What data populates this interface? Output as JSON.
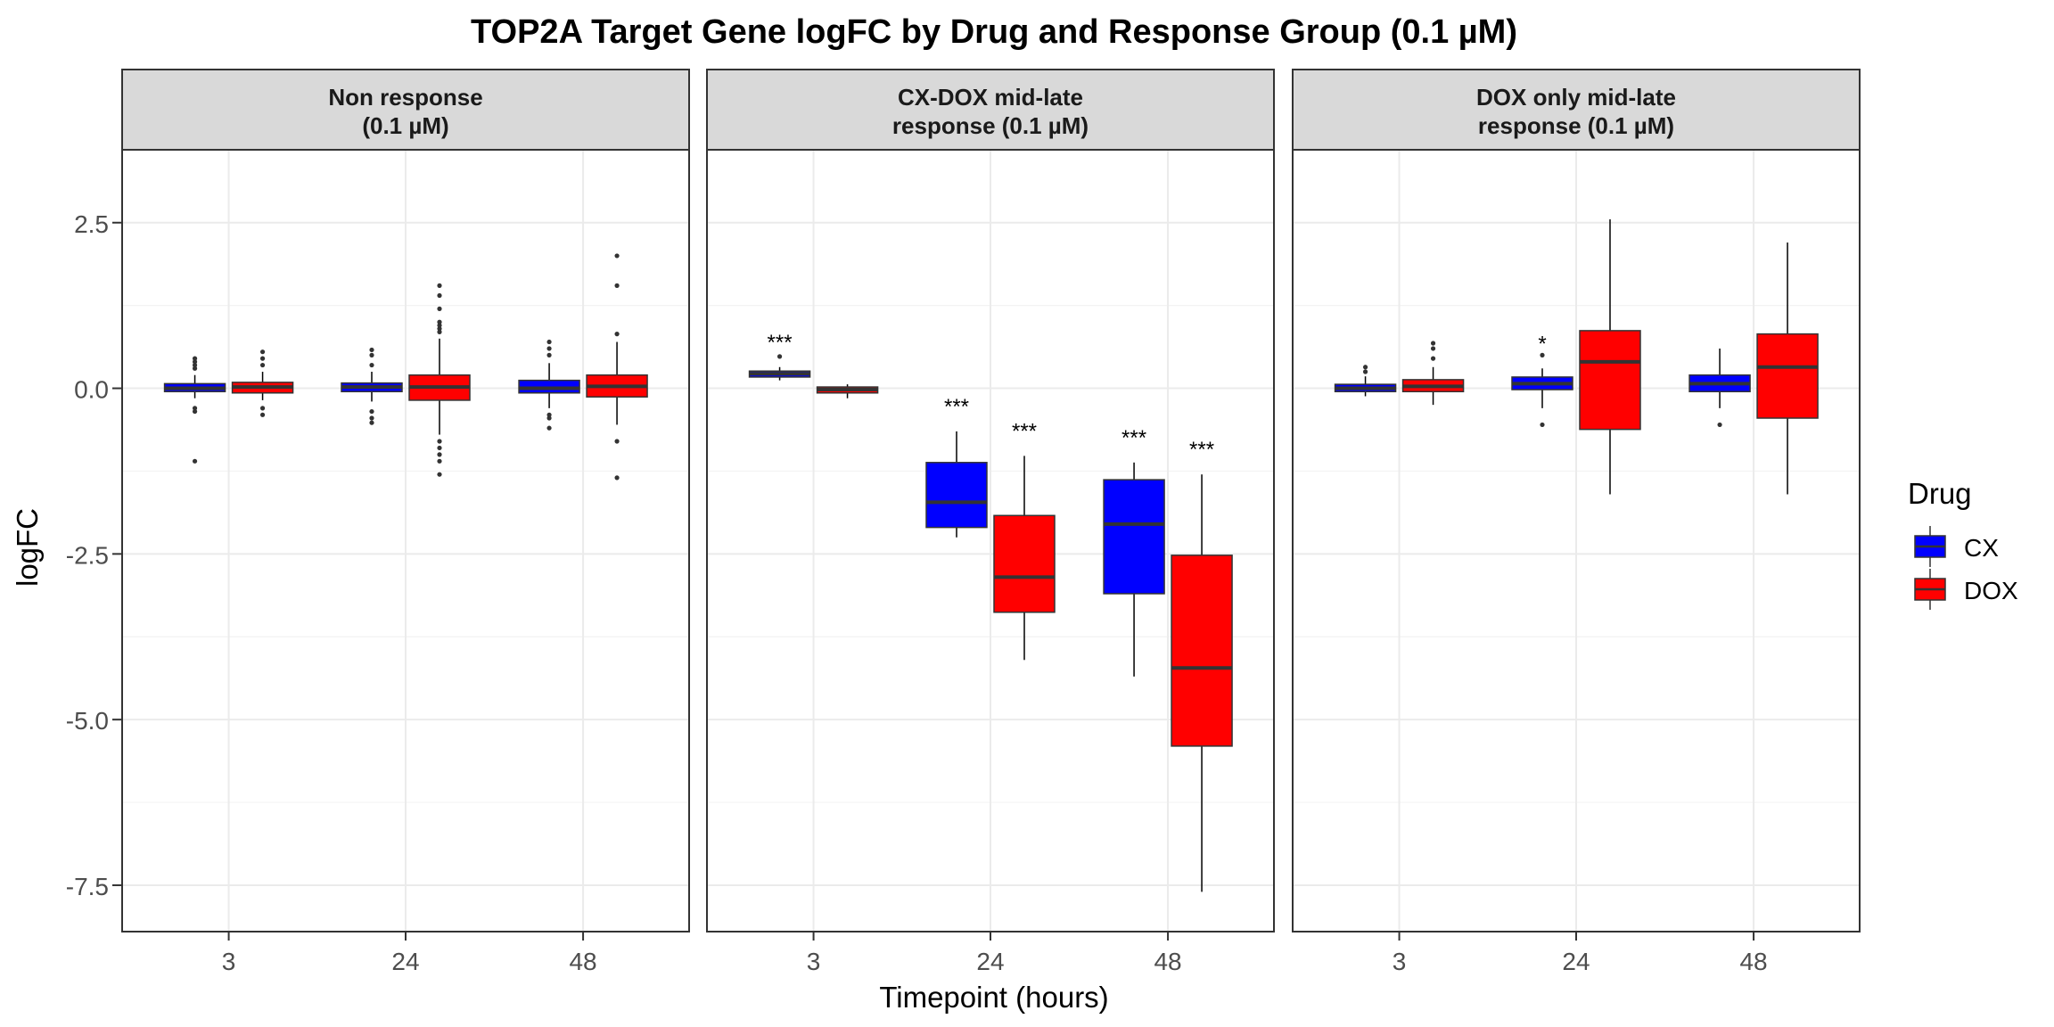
{
  "chart_data": {
    "type": "boxplot",
    "title": "TOP2A Target Gene logFC by Drug and Response Group (0.1 µM)",
    "xlabel": "Timepoint (hours)",
    "ylabel": "logFC",
    "ylim": [
      -8.2,
      3.6
    ],
    "y_ticks": [
      2.5,
      0.0,
      -2.5,
      -5.0,
      -7.5
    ],
    "y_tick_labels": [
      "2.5",
      "0.0",
      "-2.5",
      "-5.0",
      "-7.5"
    ],
    "categories": [
      "3",
      "24",
      "48"
    ],
    "grid": true,
    "legend": {
      "title": "Drug",
      "placement": "right",
      "entries": [
        {
          "name": "CX",
          "color": "#0000FF"
        },
        {
          "name": "DOX",
          "color": "#FF0000"
        }
      ]
    },
    "facets": [
      {
        "label": "Non response\n(0.1 µM)",
        "boxes": [
          {
            "timepoint": "3",
            "drug": "CX",
            "lower_whisker": -0.15,
            "q1": -0.05,
            "median": 0.0,
            "q3": 0.07,
            "upper_whisker": 0.2,
            "outliers": [
              0.3,
              0.35,
              0.4,
              0.45,
              -0.3,
              -0.35,
              -1.1
            ],
            "significance": ""
          },
          {
            "timepoint": "3",
            "drug": "DOX",
            "lower_whisker": -0.18,
            "q1": -0.07,
            "median": 0.02,
            "q3": 0.09,
            "upper_whisker": 0.25,
            "outliers": [
              0.35,
              0.45,
              0.55,
              -0.3,
              -0.4
            ],
            "significance": ""
          },
          {
            "timepoint": "24",
            "drug": "CX",
            "lower_whisker": -0.2,
            "q1": -0.05,
            "median": 0.02,
            "q3": 0.08,
            "upper_whisker": 0.25,
            "outliers": [
              0.35,
              0.5,
              0.58,
              -0.35,
              -0.45,
              -0.52
            ],
            "significance": ""
          },
          {
            "timepoint": "24",
            "drug": "DOX",
            "lower_whisker": -0.7,
            "q1": -0.18,
            "median": 0.02,
            "q3": 0.2,
            "upper_whisker": 0.75,
            "outliers": [
              0.85,
              0.9,
              0.95,
              1.0,
              1.2,
              1.4,
              1.55,
              -0.8,
              -0.9,
              -1.0,
              -1.1,
              -1.3
            ],
            "significance": ""
          },
          {
            "timepoint": "48",
            "drug": "CX",
            "lower_whisker": -0.3,
            "q1": -0.07,
            "median": 0.0,
            "q3": 0.12,
            "upper_whisker": 0.38,
            "outliers": [
              0.5,
              0.6,
              0.7,
              -0.4,
              -0.45,
              -0.6
            ],
            "significance": ""
          },
          {
            "timepoint": "48",
            "drug": "DOX",
            "lower_whisker": -0.55,
            "q1": -0.13,
            "median": 0.03,
            "q3": 0.2,
            "upper_whisker": 0.7,
            "outliers": [
              0.82,
              1.55,
              2.0,
              -0.8,
              -1.35
            ],
            "significance": ""
          }
        ]
      },
      {
        "label": "CX-DOX mid-late\nresponse (0.1 µM)",
        "boxes": [
          {
            "timepoint": "3",
            "drug": "CX",
            "lower_whisker": 0.12,
            "q1": 0.17,
            "median": 0.22,
            "q3": 0.26,
            "upper_whisker": 0.32,
            "outliers": [
              0.48
            ],
            "significance": "***"
          },
          {
            "timepoint": "3",
            "drug": "DOX",
            "lower_whisker": -0.15,
            "q1": -0.07,
            "median": -0.02,
            "q3": 0.02,
            "upper_whisker": 0.06,
            "outliers": [],
            "significance": ""
          },
          {
            "timepoint": "24",
            "drug": "CX",
            "lower_whisker": -2.25,
            "q1": -2.1,
            "median": -1.72,
            "q3": -1.12,
            "upper_whisker": -0.65,
            "outliers": [],
            "significance": "***"
          },
          {
            "timepoint": "24",
            "drug": "DOX",
            "lower_whisker": -4.1,
            "q1": -3.38,
            "median": -2.85,
            "q3": -1.92,
            "upper_whisker": -1.02,
            "outliers": [],
            "significance": "***"
          },
          {
            "timepoint": "48",
            "drug": "CX",
            "lower_whisker": -4.35,
            "q1": -3.1,
            "median": -2.05,
            "q3": -1.38,
            "upper_whisker": -1.12,
            "outliers": [],
            "significance": "***"
          },
          {
            "timepoint": "48",
            "drug": "DOX",
            "lower_whisker": -7.6,
            "q1": -5.4,
            "median": -4.22,
            "q3": -2.52,
            "upper_whisker": -1.3,
            "outliers": [],
            "significance": "***"
          }
        ]
      },
      {
        "label": "DOX only mid-late\nresponse (0.1 µM)",
        "boxes": [
          {
            "timepoint": "3",
            "drug": "CX",
            "lower_whisker": -0.12,
            "q1": -0.05,
            "median": 0.0,
            "q3": 0.06,
            "upper_whisker": 0.18,
            "outliers": [
              0.25,
              0.32
            ],
            "significance": ""
          },
          {
            "timepoint": "3",
            "drug": "DOX",
            "lower_whisker": -0.25,
            "q1": -0.05,
            "median": 0.03,
            "q3": 0.13,
            "upper_whisker": 0.32,
            "outliers": [
              0.45,
              0.6,
              0.68
            ],
            "significance": ""
          },
          {
            "timepoint": "24",
            "drug": "CX",
            "lower_whisker": -0.3,
            "q1": -0.02,
            "median": 0.07,
            "q3": 0.17,
            "upper_whisker": 0.3,
            "outliers": [
              0.5,
              -0.55
            ],
            "significance": "*"
          },
          {
            "timepoint": "24",
            "drug": "DOX",
            "lower_whisker": -1.6,
            "q1": -0.62,
            "median": 0.4,
            "q3": 0.87,
            "upper_whisker": 2.55,
            "outliers": [],
            "significance": ""
          },
          {
            "timepoint": "48",
            "drug": "CX",
            "lower_whisker": -0.3,
            "q1": -0.05,
            "median": 0.07,
            "q3": 0.2,
            "upper_whisker": 0.6,
            "outliers": [
              -0.55
            ],
            "significance": ""
          },
          {
            "timepoint": "48",
            "drug": "DOX",
            "lower_whisker": -1.6,
            "q1": -0.45,
            "median": 0.32,
            "q3": 0.82,
            "upper_whisker": 2.2,
            "outliers": [],
            "significance": ""
          }
        ]
      }
    ]
  }
}
